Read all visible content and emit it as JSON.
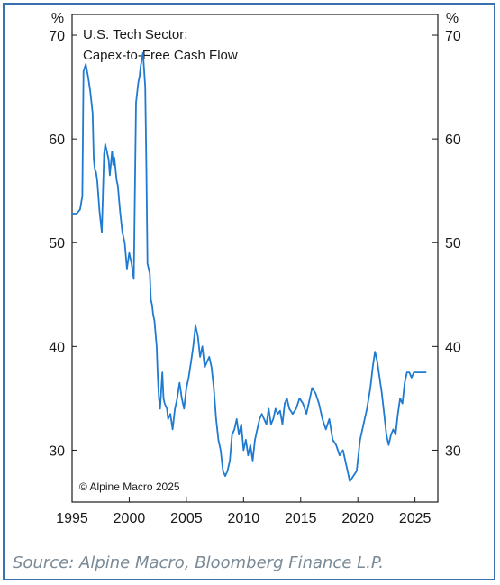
{
  "colors": {
    "frame": "#3a6fb0",
    "line": "#1f7ad1",
    "source_text": "#7a8a96"
  },
  "copyright": "© Alpine Macro 2025",
  "source_note": "Source: Alpine Macro, Bloomberg Finance L.P.",
  "chart_data": {
    "type": "line",
    "title": "U.S. Tech Sector:",
    "subtitle": "Capex-to-Free Cash Flow",
    "xlabel": "",
    "ylabel": "%",
    "ylabel_right": "%",
    "xlim": [
      1995,
      2027
    ],
    "ylim": [
      25,
      72
    ],
    "x_ticks": [
      1995,
      2000,
      2005,
      2010,
      2015,
      2020,
      2025
    ],
    "y_ticks": [
      30,
      40,
      50,
      60,
      70
    ],
    "grid": false,
    "series": [
      {
        "x": [
          1995.0,
          1995.4,
          1995.7,
          1995.9,
          1996.0,
          1996.2,
          1996.4,
          1996.6,
          1996.8,
          1996.9,
          1997.0,
          1997.1,
          1997.2,
          1997.4,
          1997.6,
          1997.8,
          1997.9,
          1998.0,
          1998.2,
          1998.3,
          1998.5,
          1998.6,
          1998.7,
          1998.9,
          1999.0,
          1999.2,
          1999.4,
          1999.6,
          1999.8,
          2000.0,
          2000.2,
          2000.4,
          2000.6,
          2000.8,
          2000.9,
          2001.0,
          2001.2,
          2001.4,
          2001.5,
          2001.6,
          2001.8,
          2001.9,
          2002.0,
          2002.1,
          2002.2,
          2002.4,
          2002.5,
          2002.6,
          2002.7,
          2002.9,
          2003.0,
          2003.1,
          2003.3,
          2003.4,
          2003.6,
          2003.8,
          2004.0,
          2004.2,
          2004.4,
          2004.6,
          2004.8,
          2005.0,
          2005.2,
          2005.4,
          2005.6,
          2005.8,
          2006.0,
          2006.2,
          2006.4,
          2006.6,
          2006.8,
          2007.0,
          2007.2,
          2007.4,
          2007.6,
          2007.8,
          2008.0,
          2008.2,
          2008.4,
          2008.6,
          2008.8,
          2009.0,
          2009.2,
          2009.4,
          2009.6,
          2009.8,
          2010.0,
          2010.2,
          2010.4,
          2010.6,
          2010.8,
          2011.0,
          2011.2,
          2011.4,
          2011.6,
          2011.8,
          2012.0,
          2012.2,
          2012.4,
          2012.6,
          2012.8,
          2013.0,
          2013.2,
          2013.4,
          2013.6,
          2013.8,
          2014.0,
          2014.3,
          2014.6,
          2014.9,
          2015.2,
          2015.5,
          2015.8,
          2016.0,
          2016.3,
          2016.6,
          2016.9,
          2017.2,
          2017.5,
          2017.8,
          2018.1,
          2018.4,
          2018.7,
          2019.0,
          2019.3,
          2019.6,
          2019.9,
          2020.2,
          2020.5,
          2020.8,
          2021.1,
          2021.3,
          2021.5,
          2021.7,
          2021.9,
          2022.1,
          2022.3,
          2022.5,
          2022.7,
          2022.9,
          2023.1,
          2023.3,
          2023.5,
          2023.7,
          2023.9,
          2024.1,
          2024.3,
          2024.5,
          2024.7,
          2024.9,
          2025.1,
          2025.3,
          2025.5,
          2025.7,
          2025.9,
          2026.0
        ],
        "values": [
          52.8,
          52.8,
          53.2,
          54.5,
          66.5,
          67.2,
          66.0,
          64.5,
          62.5,
          58.0,
          57.0,
          56.8,
          56.0,
          53.0,
          51.0,
          58.5,
          59.5,
          59.0,
          58.0,
          56.5,
          58.8,
          57.5,
          58.2,
          56.0,
          55.5,
          53.0,
          51.0,
          50.0,
          47.5,
          49.0,
          48.0,
          46.5,
          63.5,
          65.5,
          66.0,
          67.0,
          68.3,
          65.0,
          57.0,
          48.0,
          47.0,
          44.5,
          44.0,
          43.0,
          42.5,
          40.0,
          37.0,
          35.0,
          34.0,
          37.5,
          35.0,
          34.5,
          34.0,
          33.0,
          33.5,
          32.0,
          34.0,
          35.0,
          36.5,
          35.0,
          34.0,
          36.0,
          37.0,
          38.5,
          40.0,
          42.0,
          41.0,
          39.0,
          40.0,
          38.0,
          38.5,
          39.0,
          38.0,
          36.0,
          33.0,
          31.0,
          30.0,
          28.0,
          27.5,
          28.0,
          29.0,
          31.5,
          32.0,
          33.0,
          31.5,
          32.5,
          30.0,
          31.0,
          29.5,
          30.5,
          29.0,
          31.0,
          32.0,
          33.0,
          33.5,
          33.0,
          32.5,
          34.0,
          32.5,
          33.0,
          34.0,
          33.5,
          33.8,
          32.5,
          34.5,
          35.0,
          34.0,
          33.5,
          34.0,
          35.0,
          34.5,
          33.5,
          35.0,
          36.0,
          35.5,
          34.5,
          33.0,
          32.0,
          33.0,
          31.0,
          30.5,
          29.5,
          30.0,
          28.5,
          27.0,
          27.5,
          28.0,
          31.0,
          32.5,
          34.0,
          36.0,
          38.0,
          39.5,
          38.5,
          37.0,
          35.5,
          33.5,
          31.5,
          30.5,
          31.5,
          32.0,
          31.5,
          33.5,
          35.0,
          34.5,
          36.5,
          37.5,
          37.5,
          37.0,
          37.5,
          37.5,
          37.5,
          37.5,
          37.5,
          37.5,
          37.5
        ]
      }
    ]
  }
}
